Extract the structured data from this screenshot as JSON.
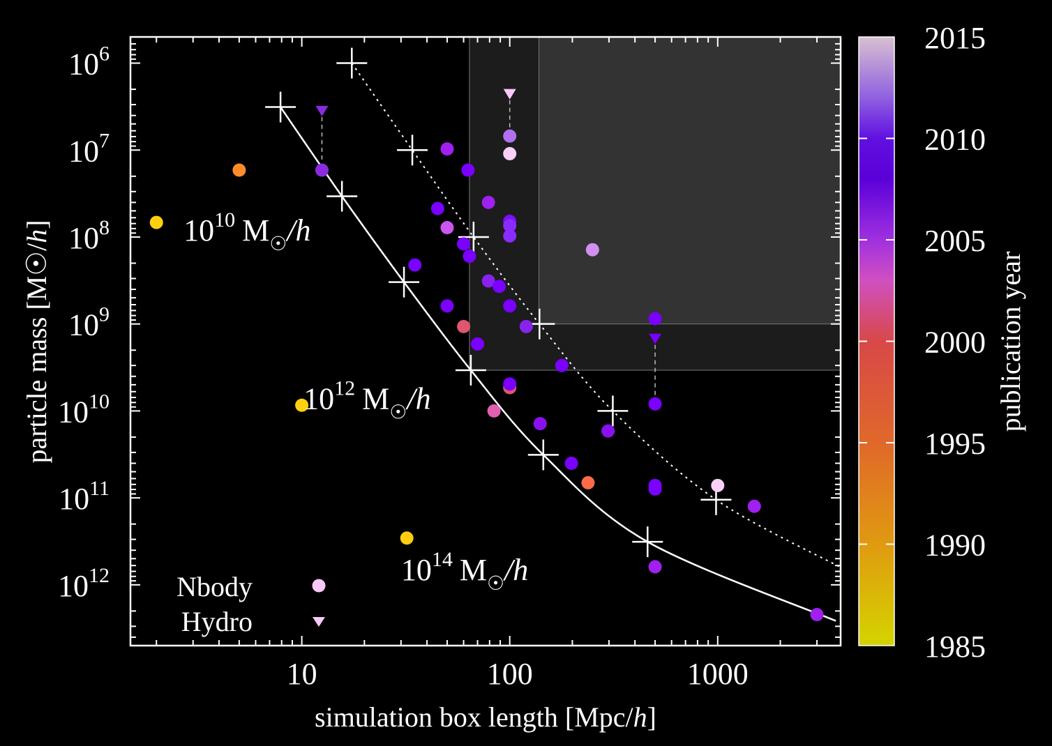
{
  "chart_data": {
    "type": "scatter",
    "title": "",
    "xlabel": "simulation box length [Mpc/h]",
    "ylabel": "particle mass [M☉/h]",
    "xscale": "log",
    "yscale": "log",
    "xlim": [
      1.5,
      3900
    ],
    "ylim": [
      500000.0,
      5000000000000.0
    ],
    "y_inverted": true,
    "x_ticks": [
      {
        "value": 10,
        "label": "10"
      },
      {
        "value": 100,
        "label": "100"
      },
      {
        "value": 1000,
        "label": "1000"
      }
    ],
    "y_ticks": [
      {
        "value": 1000000.0,
        "base": "10",
        "exp": "6"
      },
      {
        "value": 10000000.0,
        "base": "10",
        "exp": "7"
      },
      {
        "value": 100000000.0,
        "base": "10",
        "exp": "8"
      },
      {
        "value": 1000000000.0,
        "base": "10",
        "exp": "9"
      },
      {
        "value": 10000000000.0,
        "base": "10",
        "exp": "10"
      },
      {
        "value": 100000000000.0,
        "base": "10",
        "exp": "11"
      },
      {
        "value": 1000000000000.0,
        "base": "10",
        "exp": "12"
      }
    ],
    "grid": false,
    "colorbar": {
      "label": "publication year",
      "range": [
        1985,
        2015
      ],
      "ticks": [
        1985,
        1990,
        1995,
        2000,
        2005,
        2010,
        2015
      ],
      "colormap": [
        {
          "year": 1985,
          "color": "#d4d400"
        },
        {
          "year": 1990,
          "color": "#e09a10"
        },
        {
          "year": 1995,
          "color": "#e0682a"
        },
        {
          "year": 2000,
          "color": "#d84848"
        },
        {
          "year": 2003,
          "color": "#d050c0"
        },
        {
          "year": 2005,
          "color": "#a030e0"
        },
        {
          "year": 2008,
          "color": "#5a00d8"
        },
        {
          "year": 2010,
          "color": "#6010e0"
        },
        {
          "year": 2012,
          "color": "#9060e0"
        },
        {
          "year": 2015,
          "color": "#d8c0d0"
        }
      ]
    },
    "shaded_regions": [
      {
        "name": "outer-region",
        "x_from": 64,
        "x_to": 3900,
        "y_from": 500000.0,
        "y_to": 3400000000.0,
        "color": "#1c1c1c"
      },
      {
        "name": "inner-region",
        "x_from": 138,
        "x_to": 3900,
        "y_from": 500000.0,
        "y_to": 1000000000.0,
        "color": "#333333"
      }
    ],
    "series": [
      {
        "name": "Nbody",
        "marker": "circle",
        "points": [
          {
            "x": 2.0,
            "y": 68000000.0,
            "year": 1988,
            "color": "#ffd010"
          },
          {
            "x": 5.0,
            "y": 17000000.0,
            "year": 1993,
            "color": "#ff8c28"
          },
          {
            "x": 10,
            "y": 8600000000.0,
            "year": 1988,
            "color": "#ffd010"
          },
          {
            "x": 32,
            "y": 290000000000.0,
            "year": 1988,
            "color": "#ffcc11"
          },
          {
            "x": 12.5,
            "y": 17000000.0,
            "year": 2007,
            "color": "#8a2be2"
          },
          {
            "x": 50,
            "y": 9700000.0,
            "year": 2006,
            "color": "#a020f0"
          },
          {
            "x": 63,
            "y": 17000000.0,
            "year": 2009,
            "color": "#7a00ff"
          },
          {
            "x": 45,
            "y": 47000000.0,
            "year": 2009,
            "color": "#7a00ff"
          },
          {
            "x": 50,
            "y": 78000000.0,
            "year": 2004,
            "color": "#cc55ee"
          },
          {
            "x": 60,
            "y": 120000000.0,
            "year": 2009,
            "color": "#7a00ff"
          },
          {
            "x": 64,
            "y": 166000000.0,
            "year": 2009,
            "color": "#7a00ff"
          },
          {
            "x": 79,
            "y": 40000000.0,
            "year": 2006,
            "color": "#a020f0"
          },
          {
            "x": 100,
            "y": 6900000.0,
            "year": 2012,
            "color": "#b070f0"
          },
          {
            "x": 100,
            "y": 11000000.0,
            "year": 2014,
            "color": "#f8d0f8"
          },
          {
            "x": 100,
            "y": 66000000.0,
            "year": 2009,
            "color": "#7a10ff"
          },
          {
            "x": 100,
            "y": 74000000.0,
            "year": 2008,
            "color": "#8a2bff"
          },
          {
            "x": 100,
            "y": 97000000.0,
            "year": 2008,
            "color": "#8a2bff"
          },
          {
            "x": 35,
            "y": 210000000.0,
            "year": 2009,
            "color": "#7a00ff"
          },
          {
            "x": 79,
            "y": 320000000.0,
            "year": 2007,
            "color": "#8822ee"
          },
          {
            "x": 89,
            "y": 370000000.0,
            "year": 2009,
            "color": "#7a00ff"
          },
          {
            "x": 50,
            "y": 620000000.0,
            "year": 2009,
            "color": "#7a00ff"
          },
          {
            "x": 100,
            "y": 620000000.0,
            "year": 2009,
            "color": "#7a00ff"
          },
          {
            "x": 60,
            "y": 1070000000.0,
            "year": 2001,
            "color": "#e05570"
          },
          {
            "x": 120,
            "y": 1070000000.0,
            "year": 2007,
            "color": "#8822ee"
          },
          {
            "x": 70,
            "y": 1700000000.0,
            "year": 2009,
            "color": "#7a00ff"
          },
          {
            "x": 178,
            "y": 3000000000.0,
            "year": 2009,
            "color": "#7a00ff"
          },
          {
            "x": 100,
            "y": 5400000000.0,
            "year": 2001,
            "color": "#e05570"
          },
          {
            "x": 100,
            "y": 4900000000.0,
            "year": 2009,
            "color": "#7a00ff"
          },
          {
            "x": 84,
            "y": 10000000000.0,
            "year": 2003,
            "color": "#e060b0"
          },
          {
            "x": 140,
            "y": 14000000000.0,
            "year": 2007,
            "color": "#8a10f0"
          },
          {
            "x": 297,
            "y": 17000000000.0,
            "year": 2007,
            "color": "#8a10f0"
          },
          {
            "x": 198,
            "y": 40000000000.0,
            "year": 2009,
            "color": "#7a00ff"
          },
          {
            "x": 238,
            "y": 67000000000.0,
            "year": 1998,
            "color": "#ff6a48"
          },
          {
            "x": 500,
            "y": 870000000.0,
            "year": 2009,
            "color": "#7a00ff"
          },
          {
            "x": 500,
            "y": 8300000000.0,
            "year": 2009,
            "color": "#7a00ff"
          },
          {
            "x": 500,
            "y": 72000000000.0,
            "year": 2009,
            "color": "#7a00ff"
          },
          {
            "x": 500,
            "y": 79000000000.0,
            "year": 2009,
            "color": "#7a00ff"
          },
          {
            "x": 1000,
            "y": 72000000000.0,
            "year": 2014,
            "color": "#f8d0f8"
          },
          {
            "x": 1500,
            "y": 125000000000.0,
            "year": 2007,
            "color": "#a020f0"
          },
          {
            "x": 500,
            "y": 620000000000.0,
            "year": 2007,
            "color": "#a020f0"
          },
          {
            "x": 3000,
            "y": 2200000000000.0,
            "year": 2007,
            "color": "#a020f0"
          },
          {
            "x": 250,
            "y": 140000000.0,
            "year": 2013,
            "color": "#d090f0"
          }
        ]
      },
      {
        "name": "Hydro",
        "marker": "triangle-down",
        "points": [
          {
            "x": 12.5,
            "y": 3600000.0,
            "year": 2009,
            "color": "#8a2be2",
            "links_to_y": 17000000.0
          },
          {
            "x": 100,
            "y": 2300000.0,
            "year": 2014,
            "color": "#f8c8f8",
            "links_to_y": 6900000.0
          },
          {
            "x": 500,
            "y": 1500000000.0,
            "year": 2009,
            "color": "#7a00ff",
            "links_to_y": 8300000000.0
          }
        ]
      }
    ],
    "reference_curves": [
      {
        "name": "solid-curve",
        "style": "solid",
        "points": [
          [
            7.9,
            3200000.0
          ],
          [
            15.6,
            34000000.0
          ],
          [
            31,
            330000000.0
          ],
          [
            65,
            3400000000.0
          ],
          [
            145,
            32000000000.0
          ],
          [
            460,
            320000000000.0
          ],
          [
            3700,
            2600000000000.0
          ]
        ],
        "markers": [
          [
            7.9,
            3200000.0
          ],
          [
            15.6,
            34000000.0
          ],
          [
            31,
            330000000.0
          ],
          [
            65,
            3400000000.0
          ],
          [
            145,
            32000000000.0
          ],
          [
            460,
            320000000000.0
          ]
        ]
      },
      {
        "name": "dotted-curve",
        "style": "dotted",
        "points": [
          [
            17.4,
            1000000.0
          ],
          [
            34,
            10000000.0
          ],
          [
            67,
            100000000.0
          ],
          [
            139,
            1000000000.0
          ],
          [
            313,
            10000000000.0
          ],
          [
            982,
            105000000000.0
          ],
          [
            3900,
            630000000000.0
          ]
        ],
        "markers": [
          [
            17.4,
            1000000.0
          ],
          [
            34,
            10000000.0
          ],
          [
            67,
            100000000.0
          ],
          [
            139,
            1000000000.0
          ],
          [
            313,
            10000000000.0
          ],
          [
            982,
            105000000000.0
          ]
        ]
      }
    ],
    "annotations": [
      {
        "name": "halo-1e10",
        "base": "10",
        "exp": "10",
        "unit": "M",
        "sub": "☉",
        "tail": "/h",
        "x": 2.7,
        "y": 110000000.0
      },
      {
        "name": "halo-1e12",
        "base": "10",
        "exp": "12",
        "unit": "M",
        "sub": "☉",
        "tail": "/h",
        "x": 10.2,
        "y": 9500000000.0
      },
      {
        "name": "halo-1e14",
        "base": "10",
        "exp": "14",
        "unit": "M",
        "sub": "☉",
        "tail": "/h",
        "x": 30,
        "y": 880000000000.0
      }
    ],
    "legend": {
      "position": "bottom-left",
      "entries": [
        {
          "label": "Nbody",
          "marker": "circle",
          "color": "#f8c8f8"
        },
        {
          "label": "Hydro",
          "marker": "triangle-down",
          "color": "#f8c8f8"
        }
      ]
    }
  }
}
